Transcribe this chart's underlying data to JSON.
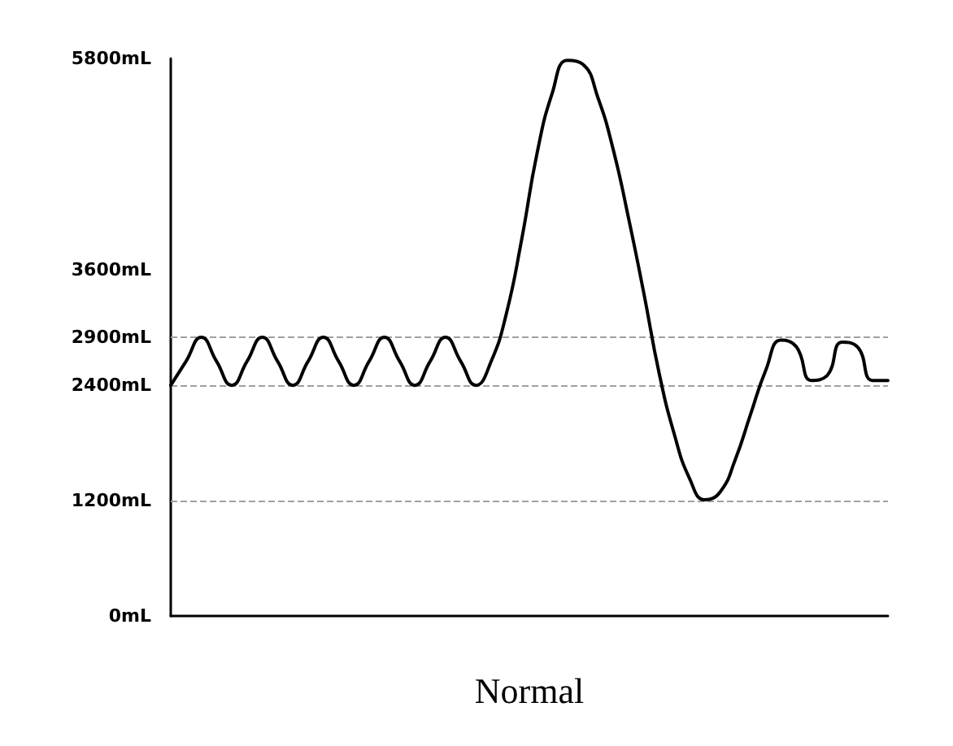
{
  "chart_data": {
    "type": "line",
    "xlabel": "Normal",
    "categories": [
      null,
      null,
      null,
      null,
      null,
      null,
      null,
      null,
      null,
      null,
      null,
      null,
      null,
      null,
      null,
      null,
      null,
      null,
      null,
      null,
      null,
      null,
      null,
      null,
      null,
      null,
      null,
      null,
      null,
      null,
      null,
      null,
      null,
      null,
      null,
      null,
      null,
      null,
      null,
      null,
      null,
      null,
      null,
      null,
      null,
      null,
      null,
      null
    ],
    "series": [
      {
        "color": "#000000",
        "values": [
          2400,
          2650,
          2900,
          2650,
          2400,
          2650,
          2900,
          2650,
          2400,
          2650,
          2900,
          2650,
          2400,
          2650,
          2900,
          2650,
          2400,
          2650,
          2900,
          2650,
          2400,
          2650,
          3150,
          3920,
          4810,
          5440,
          5780,
          5740,
          5390,
          4850,
          4140,
          3360,
          2530,
          1890,
          1430,
          1210,
          1290,
          1630,
          2100,
          2560,
          2870,
          2800,
          2450,
          2500,
          2850,
          2800,
          2450,
          2450
        ]
      }
    ],
    "ylim": [
      0,
      5800
    ],
    "yticks": [
      {
        "value": 0,
        "label": "0mL"
      },
      {
        "value": 1200,
        "label": "1200mL"
      },
      {
        "value": 2400,
        "label": "2400mL"
      },
      {
        "value": 2900,
        "label": "2900mL"
      },
      {
        "value": 3600,
        "label": "3600mL"
      },
      {
        "value": 5800,
        "label": "5800mL"
      }
    ],
    "ref_lines": [
      {
        "axis": "y",
        "value": 2900,
        "color": "#a0a0a0",
        "line_style": "dashed"
      },
      {
        "axis": "y",
        "value": 2400,
        "color": "#a0a0a0",
        "line_style": "dashed"
      },
      {
        "axis": "y",
        "value": 1200,
        "color": "#a0a0a0",
        "line_style": "dashed"
      }
    ],
    "grid": false,
    "marker": "none",
    "line_style": "solid",
    "tick_labels": "y"
  }
}
